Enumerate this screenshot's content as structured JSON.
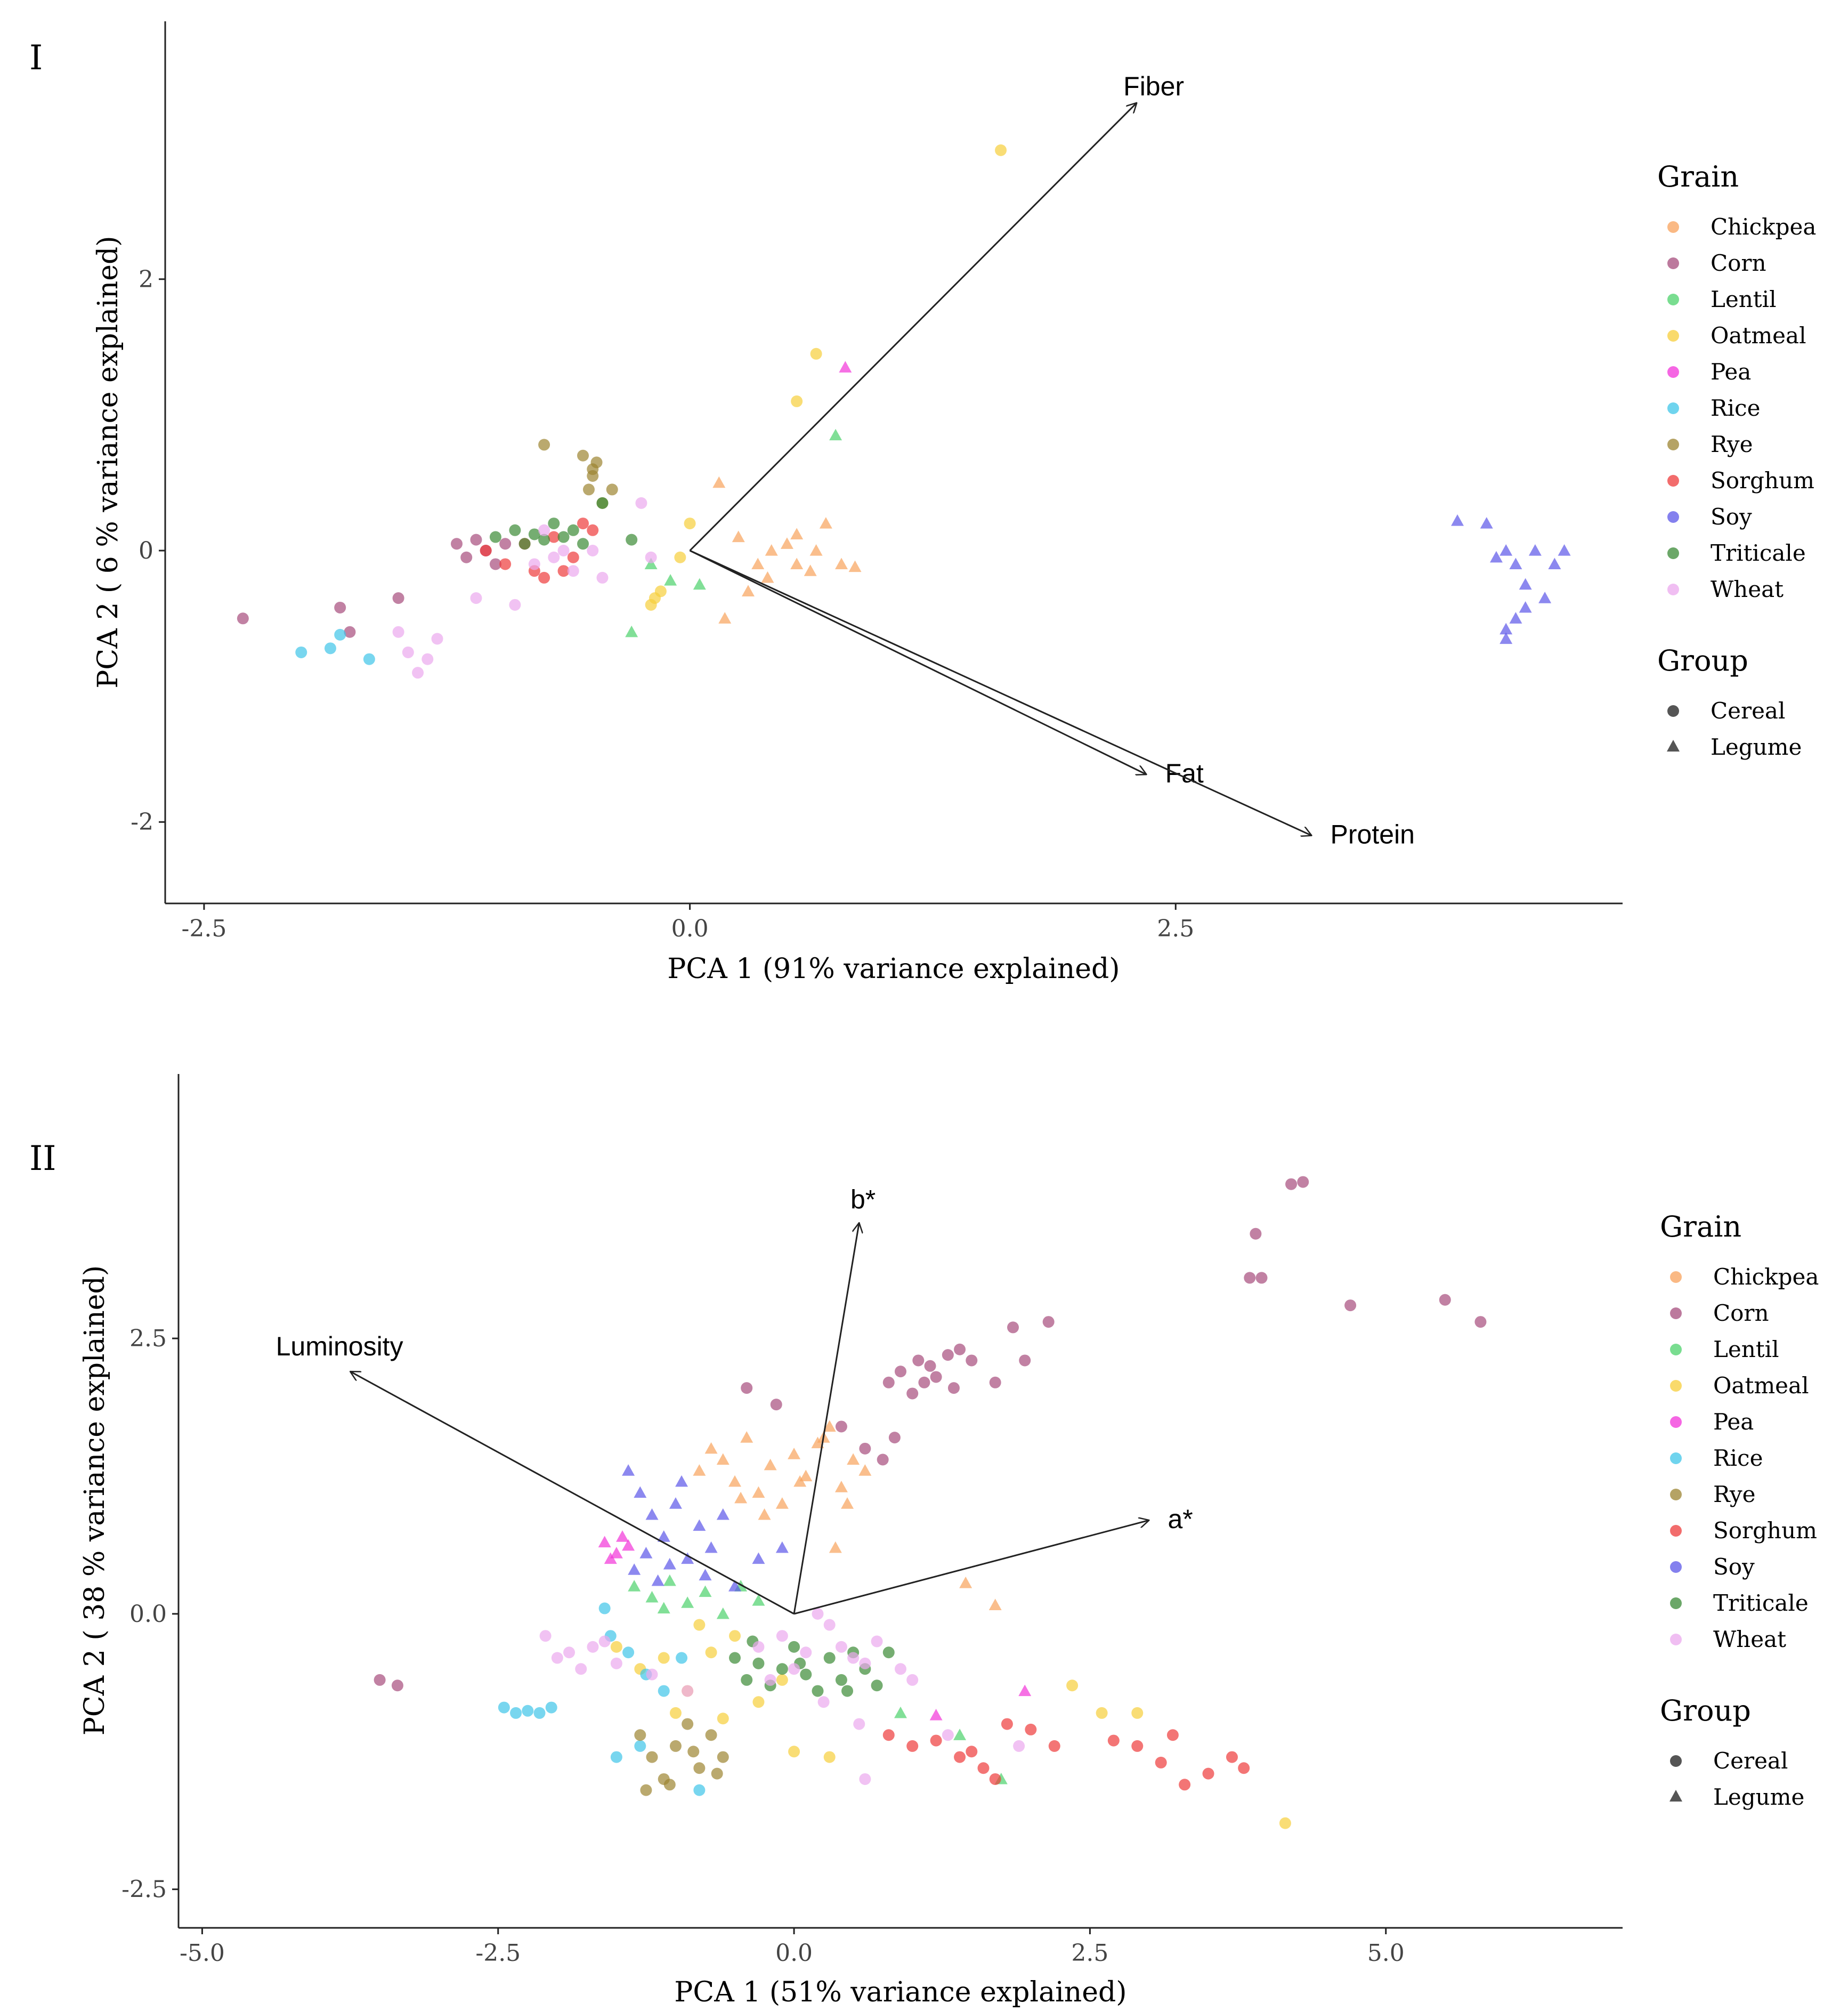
{
  "chart_data": [
    {
      "type": "scatter",
      "panel_label": "I",
      "title": "",
      "xlabel": "PCA 1 (91% variance explained)",
      "ylabel": "PCA 2 ( 6 % variance explained)",
      "xlim": [
        -2.7,
        4.8
      ],
      "ylim": [
        -2.6,
        3.9
      ],
      "xticks": [
        -2.5,
        0.0,
        2.5
      ],
      "xtick_labels": [
        "-2.5",
        "0.0",
        "2.5"
      ],
      "yticks": [
        -2,
        0,
        2
      ],
      "ytick_labels": [
        "-2",
        "0",
        "2"
      ],
      "grid": false,
      "legend_position": "right",
      "loadings": [
        {
          "name": "Fiber",
          "x": 2.3,
          "y": 3.3
        },
        {
          "name": "Fat",
          "x": 2.35,
          "y": -1.65
        },
        {
          "name": "Protein",
          "x": 3.2,
          "y": -2.1
        }
      ],
      "series": [
        {
          "name": "Chickpea",
          "group": "Legume",
          "x": [
            0.15,
            0.25,
            0.35,
            0.42,
            0.5,
            0.55,
            0.62,
            0.7,
            0.78,
            0.85,
            0.4,
            0.3,
            0.18,
            0.55,
            0.65
          ],
          "y": [
            0.5,
            0.1,
            -0.1,
            0.0,
            0.05,
            -0.1,
            -0.15,
            0.2,
            -0.1,
            -0.12,
            -0.2,
            -0.3,
            -0.5,
            0.12,
            0.0
          ]
        },
        {
          "name": "Corn",
          "group": "Cereal",
          "x": [
            -2.3,
            -1.8,
            -1.75,
            -1.5,
            -1.2,
            -1.15,
            -1.1,
            -1.05,
            -1.0,
            -0.95
          ],
          "y": [
            -0.5,
            -0.42,
            -0.6,
            -0.35,
            0.05,
            -0.05,
            0.08,
            0.0,
            -0.1,
            0.05
          ]
        },
        {
          "name": "Lentil",
          "group": "Legume",
          "x": [
            -0.3,
            -0.2,
            -0.1,
            0.05,
            0.75
          ],
          "y": [
            -0.6,
            -0.1,
            -0.22,
            -0.25,
            0.85
          ]
        },
        {
          "name": "Oatmeal",
          "group": "Cereal",
          "x": [
            0.0,
            -0.05,
            -0.15,
            -0.18,
            -0.2,
            0.55,
            0.65,
            1.6
          ],
          "y": [
            0.2,
            -0.05,
            -0.3,
            -0.35,
            -0.4,
            1.1,
            1.45,
            2.95
          ]
        },
        {
          "name": "Pea",
          "group": "Legume",
          "x": [
            0.8
          ],
          "y": [
            1.35
          ]
        },
        {
          "name": "Rice",
          "group": "Cereal",
          "x": [
            -2.0,
            -1.85,
            -1.8,
            -1.65
          ],
          "y": [
            -0.75,
            -0.72,
            -0.62,
            -0.8
          ]
        },
        {
          "name": "Rye",
          "group": "Cereal",
          "x": [
            -0.75,
            -0.55,
            -0.5,
            -0.52,
            -0.45,
            -0.48,
            -0.5,
            -0.4
          ],
          "y": [
            0.78,
            0.7,
            0.6,
            0.45,
            0.35,
            0.65,
            0.55,
            0.45
          ]
        },
        {
          "name": "Sorghum",
          "group": "Cereal",
          "x": [
            -1.05,
            -0.95,
            -0.8,
            -0.75,
            -0.6,
            -0.55,
            -0.5,
            -0.7,
            -0.85,
            -0.65
          ],
          "y": [
            0.0,
            -0.1,
            -0.15,
            -0.2,
            -0.05,
            0.2,
            0.15,
            0.1,
            0.05,
            -0.15
          ]
        },
        {
          "name": "Soy",
          "group": "Legume",
          "x": [
            3.95,
            4.1,
            4.15,
            4.2,
            4.25,
            4.3,
            4.35,
            4.4,
            4.45,
            4.5,
            4.3,
            4.25,
            4.2,
            4.2
          ],
          "y": [
            0.22,
            0.2,
            -0.05,
            0.0,
            -0.1,
            -0.25,
            0.0,
            -0.35,
            -0.1,
            0.0,
            -0.42,
            -0.5,
            -0.58,
            -0.65
          ]
        },
        {
          "name": "Triticale",
          "group": "Cereal",
          "x": [
            -1.0,
            -0.9,
            -0.85,
            -0.8,
            -0.75,
            -0.7,
            -0.65,
            -0.6,
            -0.55,
            -0.45,
            -0.3
          ],
          "y": [
            0.1,
            0.15,
            0.05,
            0.12,
            0.08,
            0.2,
            0.1,
            0.15,
            0.05,
            0.35,
            0.08
          ]
        },
        {
          "name": "Wheat",
          "group": "Cereal",
          "x": [
            -1.5,
            -1.45,
            -1.4,
            -1.35,
            -1.3,
            -0.9,
            -0.8,
            -0.7,
            -0.6,
            -0.5,
            -0.45,
            -0.25,
            -0.2,
            -0.75,
            -0.65,
            -1.1
          ],
          "y": [
            -0.6,
            -0.75,
            -0.9,
            -0.8,
            -0.65,
            -0.4,
            -0.1,
            -0.05,
            -0.15,
            0.0,
            -0.2,
            0.35,
            -0.05,
            0.15,
            0.0,
            -0.35
          ]
        }
      ]
    },
    {
      "type": "scatter",
      "panel_label": "II",
      "title": "",
      "xlabel": "PCA 1 (51% variance explained)",
      "ylabel": "PCA 2 ( 38 % variance explained)",
      "xlim": [
        -5.2,
        7.0
      ],
      "ylim": [
        -2.85,
        4.9
      ],
      "xticks": [
        -5.0,
        -2.5,
        0.0,
        2.5,
        5.0
      ],
      "xtick_labels": [
        "-5.0",
        "-2.5",
        "0.0",
        "2.5",
        "5.0"
      ],
      "yticks": [
        -2.5,
        0.0,
        2.5
      ],
      "ytick_labels": [
        "-2.5",
        "0.0",
        "2.5"
      ],
      "grid": false,
      "legend_position": "right",
      "loadings": [
        {
          "name": "b*",
          "x": 0.55,
          "y": 3.55
        },
        {
          "name": "Luminosity",
          "x": -3.75,
          "y": 2.2
        },
        {
          "name": "a*",
          "x": 3.0,
          "y": 0.85
        }
      ],
      "series": [
        {
          "name": "Chickpea",
          "group": "Legume",
          "x": [
            -0.8,
            -0.7,
            -0.6,
            -0.5,
            -0.4,
            -0.3,
            -0.2,
            -0.1,
            0.0,
            0.1,
            0.2,
            0.3,
            0.4,
            0.5,
            0.6,
            -0.45,
            -0.25,
            0.05,
            0.25,
            0.45,
            0.35,
            1.45,
            1.7
          ],
          "y": [
            1.3,
            1.5,
            1.4,
            1.2,
            1.6,
            1.1,
            1.35,
            1.0,
            1.45,
            1.25,
            1.55,
            1.7,
            1.15,
            1.4,
            1.3,
            1.05,
            0.9,
            1.2,
            1.6,
            1.0,
            0.6,
            0.28,
            0.08
          ]
        },
        {
          "name": "Corn",
          "group": "Cereal",
          "x": [
            -3.5,
            -3.35,
            -0.4,
            -0.15,
            0.4,
            0.6,
            0.75,
            0.8,
            0.85,
            0.9,
            1.0,
            1.05,
            1.1,
            1.15,
            1.2,
            1.3,
            1.35,
            1.4,
            1.5,
            1.7,
            1.85,
            1.95,
            2.15,
            3.85,
            3.9,
            3.95,
            4.2,
            4.3,
            4.7,
            5.5,
            5.8
          ],
          "y": [
            -0.6,
            -0.65,
            2.05,
            1.9,
            1.7,
            1.5,
            1.4,
            2.1,
            1.6,
            2.2,
            2.0,
            2.3,
            2.1,
            2.25,
            2.15,
            2.35,
            2.05,
            2.4,
            2.3,
            2.1,
            2.6,
            2.3,
            2.65,
            3.05,
            3.45,
            3.05,
            3.9,
            3.92,
            2.8,
            2.85,
            2.65
          ]
        },
        {
          "name": "Lentil",
          "group": "Legume",
          "x": [
            -1.35,
            -1.2,
            -1.05,
            -0.9,
            -0.75,
            -0.6,
            -0.45,
            -0.3,
            -1.1,
            0.9,
            1.4,
            1.75
          ],
          "y": [
            0.25,
            0.15,
            0.3,
            0.1,
            0.2,
            0.0,
            0.25,
            0.12,
            0.05,
            -0.9,
            -1.1,
            -1.5
          ]
        },
        {
          "name": "Oatmeal",
          "group": "Cereal",
          "x": [
            -1.5,
            -1.3,
            -1.1,
            -0.9,
            -0.7,
            -0.5,
            -0.3,
            -0.1,
            -1.0,
            -0.8,
            -0.6,
            0.0,
            0.3,
            2.35,
            2.6,
            2.9,
            4.15
          ],
          "y": [
            -0.3,
            -0.5,
            -0.4,
            -0.7,
            -0.35,
            -0.2,
            -0.8,
            -0.6,
            -0.9,
            -0.1,
            -0.95,
            -1.25,
            -1.3,
            -0.65,
            -0.9,
            -0.9,
            -1.9
          ]
        },
        {
          "name": "Pea",
          "group": "Legume",
          "x": [
            -1.6,
            -1.5,
            -1.45,
            -1.4,
            -1.55,
            1.2,
            1.95
          ],
          "y": [
            0.65,
            0.55,
            0.7,
            0.62,
            0.5,
            -0.92,
            -0.7
          ]
        },
        {
          "name": "Rice",
          "group": "Cereal",
          "x": [
            -2.45,
            -2.35,
            -2.25,
            -2.15,
            -2.05,
            -1.6,
            -1.55,
            -1.4,
            -1.25,
            -1.1,
            -0.95,
            -0.8,
            -1.5,
            -1.3
          ],
          "y": [
            -0.85,
            -0.9,
            -0.88,
            -0.9,
            -0.85,
            0.05,
            -0.2,
            -0.35,
            -0.55,
            -0.7,
            -0.4,
            -1.6,
            -1.3,
            -1.2
          ]
        },
        {
          "name": "Rye",
          "group": "Cereal",
          "x": [
            -1.3,
            -1.2,
            -1.1,
            -1.0,
            -0.9,
            -0.8,
            -0.7,
            -0.6,
            -1.25,
            -1.05,
            -0.85,
            -0.65
          ],
          "y": [
            -1.1,
            -1.3,
            -1.5,
            -1.2,
            -1.0,
            -1.4,
            -1.1,
            -1.3,
            -1.6,
            -1.55,
            -1.25,
            -1.45
          ]
        },
        {
          "name": "Sorghum",
          "group": "Cereal",
          "x": [
            0.8,
            1.0,
            1.2,
            1.4,
            1.6,
            1.8,
            2.0,
            2.2,
            2.7,
            2.9,
            3.1,
            3.3,
            3.5,
            3.7,
            3.8,
            1.5,
            1.7,
            3.2
          ],
          "y": [
            -1.1,
            -1.2,
            -1.15,
            -1.3,
            -1.4,
            -1.0,
            -1.05,
            -1.2,
            -1.15,
            -1.2,
            -1.35,
            -1.55,
            -1.45,
            -1.3,
            -1.4,
            -1.25,
            -1.5,
            -1.1
          ]
        },
        {
          "name": "Soy",
          "group": "Legume",
          "x": [
            -1.4,
            -1.3,
            -1.2,
            -1.1,
            -1.0,
            -0.9,
            -0.8,
            -0.7,
            -1.35,
            -1.15,
            -0.95,
            -0.75,
            -0.6,
            -0.5,
            -0.3,
            -0.1,
            -1.25,
            -1.05
          ],
          "y": [
            1.3,
            1.1,
            0.9,
            0.7,
            1.0,
            0.5,
            0.8,
            0.6,
            0.4,
            0.3,
            1.2,
            0.35,
            0.9,
            0.25,
            0.5,
            0.6,
            0.55,
            0.45
          ]
        },
        {
          "name": "Triticale",
          "group": "Cereal",
          "x": [
            -0.5,
            -0.4,
            -0.3,
            -0.2,
            -0.1,
            0.0,
            0.1,
            0.2,
            0.3,
            0.4,
            0.5,
            0.6,
            0.7,
            0.8,
            -0.35,
            0.05,
            0.45
          ],
          "y": [
            -0.4,
            -0.6,
            -0.45,
            -0.65,
            -0.5,
            -0.3,
            -0.55,
            -0.7,
            -0.4,
            -0.6,
            -0.35,
            -0.5,
            -0.65,
            -0.35,
            -0.25,
            -0.45,
            -0.7
          ]
        },
        {
          "name": "Wheat",
          "group": "Cereal",
          "x": [
            -2.1,
            -1.9,
            -1.7,
            -1.5,
            -1.8,
            -2.0,
            -1.6,
            -1.2,
            -0.9,
            -0.3,
            -0.1,
            0.1,
            0.3,
            0.5,
            0.7,
            0.9,
            0.2,
            0.4,
            0.6,
            0.0,
            -0.2,
            0.25,
            0.55,
            1.0,
            1.3,
            0.6,
            1.9
          ],
          "y": [
            -0.2,
            -0.35,
            -0.3,
            -0.45,
            -0.5,
            -0.4,
            -0.25,
            -0.55,
            -0.7,
            -0.3,
            -0.2,
            -0.35,
            -0.1,
            -0.4,
            -0.25,
            -0.5,
            0.0,
            -0.3,
            -0.45,
            -0.5,
            -0.6,
            -0.8,
            -1.0,
            -0.6,
            -1.1,
            -1.5,
            -1.2
          ]
        }
      ]
    }
  ],
  "legend": {
    "grain_title": "Grain",
    "grains": [
      {
        "name": "Chickpea",
        "color": "#F8A25B"
      },
      {
        "name": "Corn",
        "color": "#A64C7C"
      },
      {
        "name": "Lentil",
        "color": "#4CD16B"
      },
      {
        "name": "Oatmeal",
        "color": "#F7CE3A"
      },
      {
        "name": "Pea",
        "color": "#F233D9"
      },
      {
        "name": "Rice",
        "color": "#3FC5E8"
      },
      {
        "name": "Rye",
        "color": "#9C8431"
      },
      {
        "name": "Sorghum",
        "color": "#EE3B3B"
      },
      {
        "name": "Soy",
        "color": "#5B55E8"
      },
      {
        "name": "Triticale",
        "color": "#3A8A35"
      },
      {
        "name": "Wheat",
        "color": "#EBA8EE"
      }
    ],
    "group_title": "Group",
    "groups": [
      {
        "name": "Cereal",
        "shape": "circle"
      },
      {
        "name": "Legume",
        "shape": "triangle"
      }
    ]
  }
}
